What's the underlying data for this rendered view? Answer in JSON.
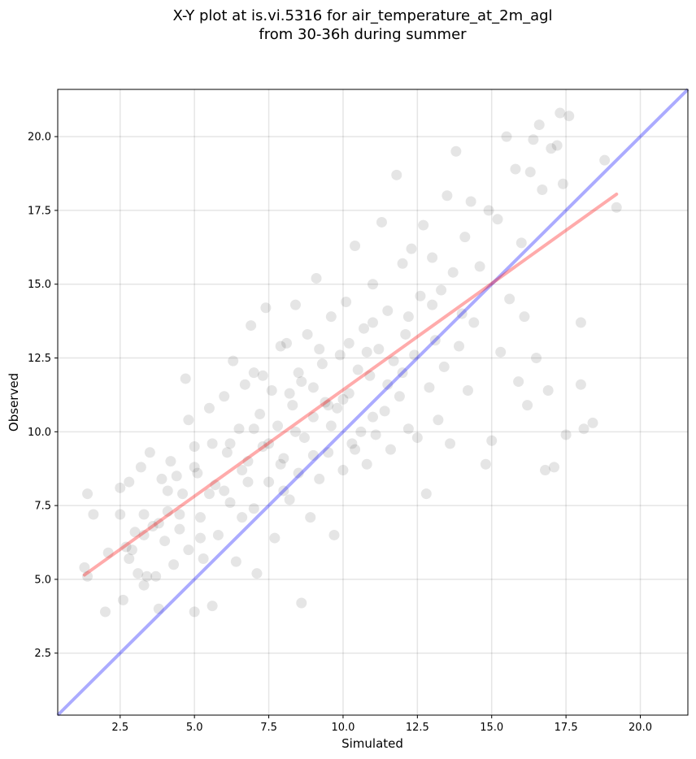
{
  "chart_data": {
    "type": "scatter",
    "title_lines": [
      "X-Y plot at is.vi.5316 for air_temperature_at_2m_agl",
      "from 30-36h during summer"
    ],
    "xlabel": "Simulated",
    "ylabel": "Observed",
    "xlim": [
      0.4,
      21.6
    ],
    "ylim": [
      0.4,
      21.6
    ],
    "xticks": [
      2.5,
      5.0,
      7.5,
      10.0,
      12.5,
      15.0,
      17.5,
      20.0
    ],
    "xtick_labels": [
      "2.5",
      "5.0",
      "7.5",
      "10.0",
      "12.5",
      "15.0",
      "17.5",
      "20.0"
    ],
    "yticks": [
      2.5,
      5.0,
      7.5,
      10.0,
      12.5,
      15.0,
      17.5,
      20.0
    ],
    "ytick_labels": [
      "2.5",
      "5.0",
      "7.5",
      "10.0",
      "12.5",
      "15.0",
      "17.5",
      "20.0"
    ],
    "grid": true,
    "point_color": "#000000",
    "point_opacity": 0.1,
    "identity_line": {
      "from": [
        0.4,
        0.4
      ],
      "to": [
        21.6,
        21.6
      ],
      "color": "#0000ff",
      "opacity": 0.33
    },
    "regression_line": {
      "from": [
        1.3,
        5.15
      ],
      "to": [
        19.2,
        18.05
      ],
      "color": "#ff0000",
      "opacity": 0.33
    },
    "points": [
      [
        1.3,
        5.4
      ],
      [
        1.4,
        7.9
      ],
      [
        1.4,
        5.1
      ],
      [
        1.6,
        7.2
      ],
      [
        2.0,
        3.9
      ],
      [
        2.1,
        5.9
      ],
      [
        2.5,
        7.2
      ],
      [
        2.5,
        8.1
      ],
      [
        2.6,
        4.3
      ],
      [
        2.7,
        6.1
      ],
      [
        2.8,
        8.3
      ],
      [
        2.8,
        5.7
      ],
      [
        3.0,
        6.6
      ],
      [
        3.1,
        5.2
      ],
      [
        3.2,
        8.8
      ],
      [
        3.3,
        4.8
      ],
      [
        3.3,
        7.2
      ],
      [
        3.4,
        5.1
      ],
      [
        3.5,
        9.3
      ],
      [
        3.6,
        6.8
      ],
      [
        3.7,
        5.1
      ],
      [
        3.8,
        4.0
      ],
      [
        3.9,
        8.4
      ],
      [
        4.0,
        6.3
      ],
      [
        4.1,
        7.3
      ],
      [
        4.2,
        9.0
      ],
      [
        4.3,
        5.5
      ],
      [
        4.4,
        8.5
      ],
      [
        4.5,
        6.7
      ],
      [
        4.6,
        7.9
      ],
      [
        4.7,
        11.8
      ],
      [
        4.8,
        10.4
      ],
      [
        4.8,
        6.0
      ],
      [
        5.0,
        9.5
      ],
      [
        5.0,
        3.9
      ],
      [
        5.1,
        8.6
      ],
      [
        5.2,
        7.1
      ],
      [
        5.3,
        5.7
      ],
      [
        5.5,
        10.8
      ],
      [
        5.6,
        4.1
      ],
      [
        5.6,
        9.6
      ],
      [
        5.7,
        8.2
      ],
      [
        5.8,
        6.5
      ],
      [
        6.0,
        11.2
      ],
      [
        6.1,
        9.3
      ],
      [
        6.2,
        7.6
      ],
      [
        6.3,
        12.4
      ],
      [
        6.4,
        5.6
      ],
      [
        6.5,
        10.1
      ],
      [
        6.6,
        8.7
      ],
      [
        6.7,
        11.6
      ],
      [
        6.8,
        9.0
      ],
      [
        6.9,
        13.6
      ],
      [
        7.0,
        7.4
      ],
      [
        7.0,
        12.0
      ],
      [
        7.1,
        5.2
      ],
      [
        7.2,
        10.6
      ],
      [
        7.3,
        9.5
      ],
      [
        7.4,
        14.2
      ],
      [
        7.5,
        8.3
      ],
      [
        7.6,
        11.4
      ],
      [
        7.7,
        6.4
      ],
      [
        7.8,
        10.2
      ],
      [
        7.9,
        12.9
      ],
      [
        8.0,
        9.1
      ],
      [
        8.1,
        13.0
      ],
      [
        8.2,
        7.7
      ],
      [
        8.3,
        10.9
      ],
      [
        8.4,
        14.3
      ],
      [
        8.5,
        8.6
      ],
      [
        8.6,
        11.7
      ],
      [
        8.6,
        4.2
      ],
      [
        8.7,
        9.8
      ],
      [
        8.8,
        13.3
      ],
      [
        8.9,
        7.1
      ],
      [
        9.0,
        10.5
      ],
      [
        9.1,
        15.2
      ],
      [
        9.2,
        8.4
      ],
      [
        9.3,
        12.3
      ],
      [
        9.4,
        11.0
      ],
      [
        9.5,
        9.3
      ],
      [
        9.6,
        13.9
      ],
      [
        9.7,
        6.5
      ],
      [
        9.8,
        10.8
      ],
      [
        9.9,
        12.6
      ],
      [
        10.0,
        8.7
      ],
      [
        10.1,
        14.4
      ],
      [
        10.2,
        11.3
      ],
      [
        10.3,
        9.6
      ],
      [
        10.4,
        16.3
      ],
      [
        10.5,
        12.1
      ],
      [
        10.6,
        10.0
      ],
      [
        10.7,
        13.5
      ],
      [
        10.8,
        8.9
      ],
      [
        10.9,
        11.9
      ],
      [
        11.0,
        15.0
      ],
      [
        11.1,
        9.9
      ],
      [
        11.2,
        12.8
      ],
      [
        11.3,
        17.1
      ],
      [
        11.4,
        10.7
      ],
      [
        11.5,
        14.1
      ],
      [
        11.6,
        9.4
      ],
      [
        11.7,
        12.4
      ],
      [
        11.8,
        18.7
      ],
      [
        11.9,
        11.2
      ],
      [
        12.0,
        15.7
      ],
      [
        12.1,
        13.3
      ],
      [
        12.2,
        10.1
      ],
      [
        12.3,
        16.2
      ],
      [
        12.4,
        12.6
      ],
      [
        12.5,
        9.8
      ],
      [
        12.6,
        14.6
      ],
      [
        12.7,
        17.0
      ],
      [
        12.8,
        7.9
      ],
      [
        12.9,
        11.5
      ],
      [
        13.0,
        15.9
      ],
      [
        13.1,
        13.1
      ],
      [
        13.2,
        10.4
      ],
      [
        13.3,
        14.8
      ],
      [
        13.4,
        12.2
      ],
      [
        13.5,
        18.0
      ],
      [
        13.6,
        9.6
      ],
      [
        13.7,
        15.4
      ],
      [
        13.8,
        19.5
      ],
      [
        13.9,
        12.9
      ],
      [
        14.0,
        14.0
      ],
      [
        14.1,
        16.6
      ],
      [
        14.2,
        11.4
      ],
      [
        14.3,
        17.8
      ],
      [
        14.4,
        13.7
      ],
      [
        14.6,
        15.6
      ],
      [
        14.8,
        8.9
      ],
      [
        14.9,
        17.5
      ],
      [
        15.0,
        9.7
      ],
      [
        15.2,
        17.2
      ],
      [
        15.3,
        12.7
      ],
      [
        15.5,
        20.0
      ],
      [
        15.6,
        14.5
      ],
      [
        15.8,
        18.9
      ],
      [
        15.9,
        11.7
      ],
      [
        16.0,
        16.4
      ],
      [
        16.1,
        13.9
      ],
      [
        16.2,
        10.9
      ],
      [
        16.3,
        18.8
      ],
      [
        16.4,
        19.9
      ],
      [
        16.5,
        12.5
      ],
      [
        16.6,
        20.4
      ],
      [
        16.7,
        18.2
      ],
      [
        16.8,
        8.7
      ],
      [
        16.9,
        11.4
      ],
      [
        17.0,
        19.6
      ],
      [
        17.1,
        8.8
      ],
      [
        17.2,
        19.7
      ],
      [
        17.3,
        20.8
      ],
      [
        17.4,
        18.4
      ],
      [
        17.5,
        9.9
      ],
      [
        17.6,
        20.7
      ],
      [
        18.0,
        11.6
      ],
      [
        18.0,
        13.7
      ],
      [
        18.1,
        10.1
      ],
      [
        18.4,
        10.3
      ],
      [
        18.8,
        19.2
      ],
      [
        19.2,
        17.6
      ],
      [
        3.3,
        6.5
      ],
      [
        4.1,
        8.0
      ],
      [
        5.2,
        6.4
      ],
      [
        6.0,
        8.0
      ],
      [
        6.6,
        7.1
      ],
      [
        7.3,
        11.9
      ],
      [
        7.9,
        8.9
      ],
      [
        8.4,
        10.0
      ],
      [
        9.0,
        11.5
      ],
      [
        9.6,
        10.2
      ],
      [
        10.2,
        13.0
      ],
      [
        10.8,
        12.7
      ],
      [
        11.5,
        11.6
      ],
      [
        12.2,
        13.9
      ],
      [
        13.0,
        14.3
      ],
      [
        8.0,
        8.0
      ],
      [
        9.0,
        9.2
      ],
      [
        10.0,
        11.1
      ],
      [
        11.0,
        10.5
      ],
      [
        7.5,
        9.6
      ],
      [
        8.5,
        12.0
      ],
      [
        9.5,
        10.9
      ],
      [
        6.8,
        8.3
      ],
      [
        5.5,
        7.9
      ],
      [
        4.5,
        7.2
      ],
      [
        12.0,
        12.0
      ],
      [
        11.0,
        13.7
      ],
      [
        10.4,
        9.4
      ],
      [
        9.2,
        12.8
      ],
      [
        8.2,
        11.3
      ],
      [
        7.0,
        10.1
      ],
      [
        6.2,
        9.6
      ],
      [
        5.0,
        8.8
      ],
      [
        3.8,
        6.9
      ],
      [
        2.9,
        6.0
      ]
    ]
  }
}
